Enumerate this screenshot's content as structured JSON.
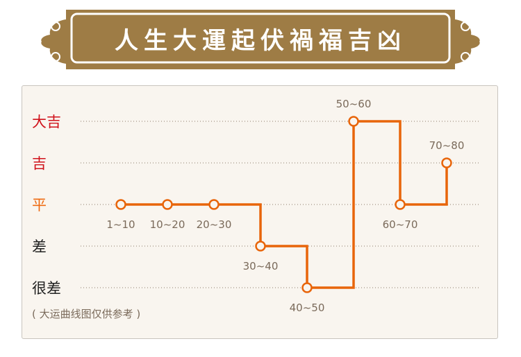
{
  "header": {
    "title": "人生大運起伏禍福吉凶",
    "bg_color": "#9e7c45"
  },
  "chart_data": {
    "type": "line",
    "step": true,
    "levels": [
      {
        "label": "大吉",
        "color": "#d0121b"
      },
      {
        "label": "吉",
        "color": "#d0121b"
      },
      {
        "label": "平",
        "color": "#ee6a12"
      },
      {
        "label": "差",
        "color": "#222222"
      },
      {
        "label": "很差",
        "color": "#222222"
      }
    ],
    "categories": [
      "1~10",
      "10~20",
      "20~30",
      "30~40",
      "40~50",
      "50~60",
      "60~70",
      "70~80"
    ],
    "values": [
      "平",
      "平",
      "平",
      "差",
      "很差",
      "大吉",
      "平",
      "吉"
    ],
    "line_color": "#e8650a",
    "grid": "dotted horizontal"
  },
  "note": "( 大运曲线图仅供参考 )"
}
